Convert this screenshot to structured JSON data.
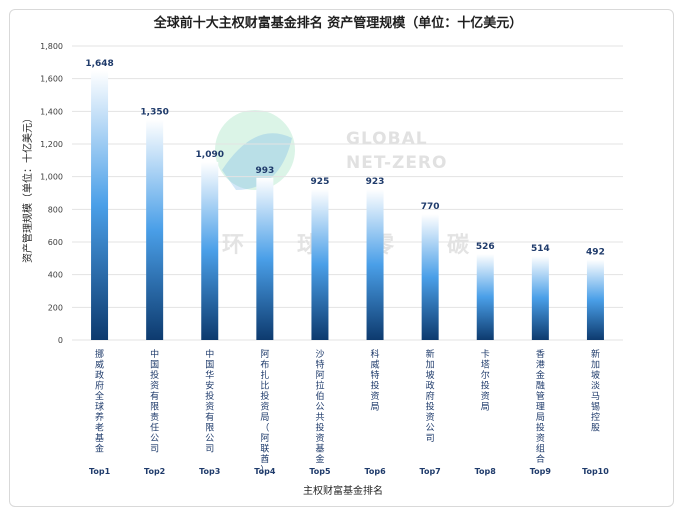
{
  "chart_data": {
    "type": "bar",
    "title": "全球前十大主权财富基金排名 资产管理规模（单位：十亿美元）",
    "xlabel": "主权财富基金排名",
    "ylabel": "资产管理规模（单位：十亿美元）",
    "ylim": [
      0,
      1800
    ],
    "yticks": [
      0,
      200,
      400,
      600,
      800,
      1000,
      1200,
      1400,
      1600,
      1800
    ],
    "ytick_labels": [
      "0",
      "200",
      "400",
      "600",
      "800",
      "1,000",
      "1,200",
      "1,400",
      "1,600",
      "1,800"
    ],
    "grid": true,
    "categories": [
      "挪威政府全球养老基金",
      "中国投资有限责任公司",
      "中国华安投资有限公司",
      "阿布扎比投资局（阿联酋）",
      "沙特阿拉伯公共投资基金",
      "科威特投资局",
      "新加坡政府投资公司",
      "卡塔尔投资局",
      "香港金融管理局投资组合",
      "新加坡淡马锡控股"
    ],
    "ranks": [
      "Top1",
      "Top2",
      "Top3",
      "Top4",
      "Top5",
      "Top6",
      "Top7",
      "Top8",
      "Top9",
      "Top10"
    ],
    "values": [
      1648,
      1350,
      1090,
      993,
      925,
      923,
      770,
      526,
      514,
      492
    ],
    "value_labels": [
      "1,648",
      "1,350",
      "1,090",
      "993",
      "925",
      "923",
      "770",
      "526",
      "514",
      "492"
    ],
    "colors": {
      "bar_top": "#ffffff",
      "bar_mid": "#4a9fe8",
      "bar_bottom": "#0d3a6e",
      "label": "#1f3b6b"
    }
  },
  "watermark": {
    "line1": "GLOBAL",
    "line2": "NET-ZERO",
    "chars": [
      "环",
      "球",
      "零",
      "碳"
    ],
    "logo_colors": [
      "#7fd6a8",
      "#6aaee8"
    ]
  }
}
